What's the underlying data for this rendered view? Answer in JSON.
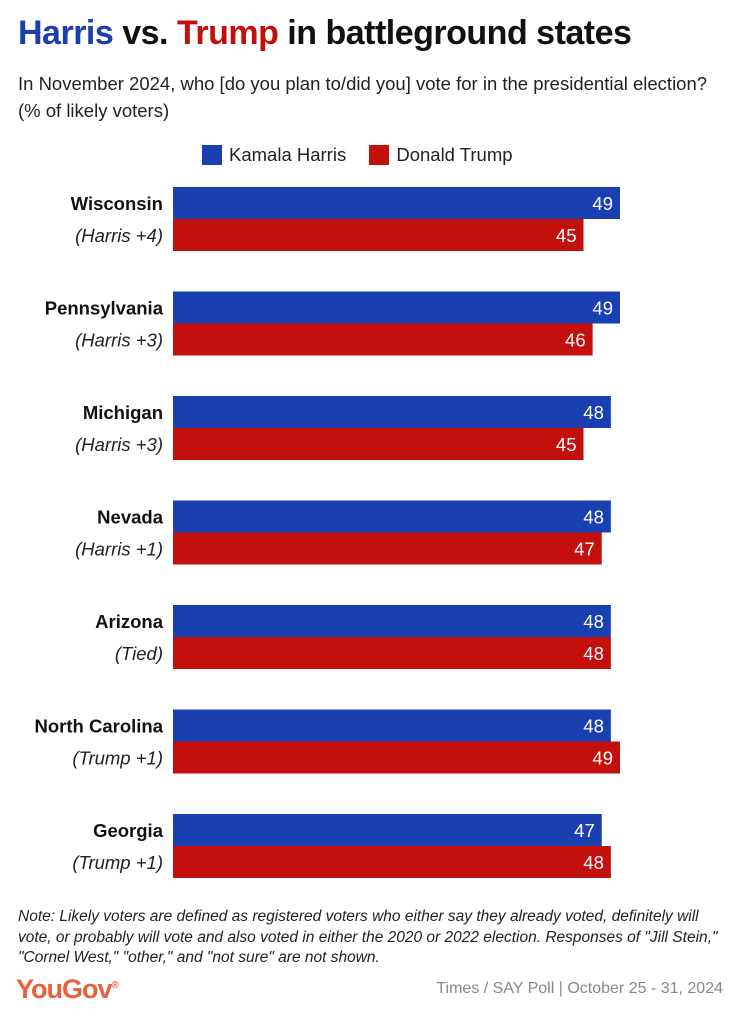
{
  "title": {
    "part1": "Harris",
    "part2": " vs. ",
    "part3": "Trump",
    "part4": " in battleground states"
  },
  "subtitle": "In November 2024, who [do you plan to/did you] vote for in the presidential election? (% of likely voters)",
  "colors": {
    "harris": "#1a3fb0",
    "trump": "#c4100c",
    "logo": "#e8603c"
  },
  "chart_data": {
    "type": "bar",
    "orientation": "horizontal",
    "categories": [
      "Wisconsin",
      "Pennsylvania",
      "Michigan",
      "Nevada",
      "Arizona",
      "North Carolina",
      "Georgia"
    ],
    "sublabels": [
      "(Harris +4)",
      "(Harris +3)",
      "(Harris +3)",
      "(Harris +1)",
      "(Tied)",
      "(Trump +1)",
      "(Trump +1)"
    ],
    "series": [
      {
        "name": "Kamala Harris",
        "color": "#1a3fb0",
        "values": [
          49,
          49,
          48,
          48,
          48,
          48,
          47
        ]
      },
      {
        "name": "Donald Trump",
        "color": "#c4100c",
        "values": [
          45,
          46,
          45,
          47,
          48,
          49,
          48
        ]
      }
    ],
    "title": "Harris vs. Trump in battleground states",
    "xlabel": "",
    "ylabel": "",
    "xlim": [
      0,
      49
    ],
    "legend": "top"
  },
  "note": "Note: Likely voters are defined as registered voters who either say they already voted, definitely will vote, or probably will vote and also voted in either the 2020 or 2022 election. Responses of \"Jill Stein,\" \"Cornel West,\" \"other,\" and \"not sure\" are not shown.",
  "logo": "YouGov",
  "source": "Times / SAY Poll | October 25 - 31, 2024"
}
